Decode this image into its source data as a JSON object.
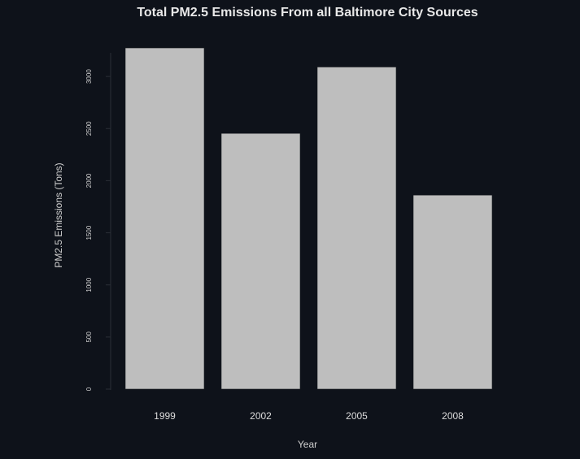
{
  "chart_data": {
    "type": "bar",
    "title": "Total PM2.5 Emissions From all Baltimore City Sources",
    "xlabel": "Year",
    "ylabel": "PM2.5 Emissions (Tons)",
    "categories": [
      "1999",
      "2002",
      "2005",
      "2008"
    ],
    "values": [
      3274,
      2454,
      3091,
      1862
    ],
    "ylim": [
      0,
      3500
    ],
    "yticks": [
      0,
      500,
      1000,
      1500,
      2000,
      2500,
      3000
    ],
    "ytick_labels": [
      "0",
      "500",
      "1000",
      "1500",
      "2000",
      "2500",
      "3000"
    ],
    "grid": false,
    "legend": "none",
    "colors": {
      "bar": "#bebebe",
      "background": "#0e121a"
    }
  }
}
